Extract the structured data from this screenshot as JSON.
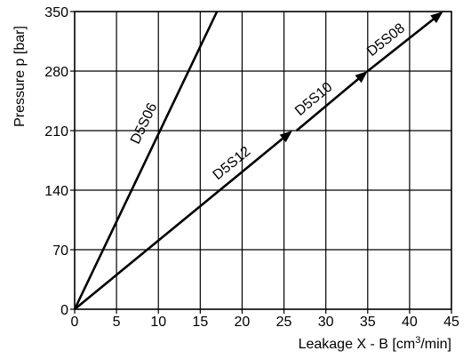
{
  "chart_data": {
    "type": "line",
    "title": "",
    "xlabel": "Leakage X - B [cm",
    "xlabel_sup": "3",
    "xlabel_tail": "/min]",
    "ylabel": "Pressure p [bar]",
    "xlim": [
      0,
      45
    ],
    "ylim": [
      0,
      350
    ],
    "xticks": [
      0,
      5,
      10,
      15,
      20,
      25,
      30,
      35,
      40,
      45
    ],
    "yticks": [
      0,
      70,
      140,
      210,
      280,
      350
    ],
    "grid": true,
    "series": [
      {
        "name": "D5S06",
        "x": [
          0,
          17
        ],
        "y": [
          0,
          350
        ],
        "arrow": false
      },
      {
        "name": "D5S12",
        "x": [
          0,
          26
        ],
        "y": [
          0,
          210
        ],
        "arrow": true
      },
      {
        "name": "D5S10",
        "x": [
          26.5,
          35
        ],
        "y": [
          210,
          280
        ],
        "arrow": true
      },
      {
        "name": "D5S08",
        "x": [
          35,
          44
        ],
        "y": [
          280,
          350
        ],
        "arrow": true
      }
    ]
  },
  "colors": {
    "line": "#000000",
    "grid": "#000000",
    "background": "#ffffff"
  }
}
